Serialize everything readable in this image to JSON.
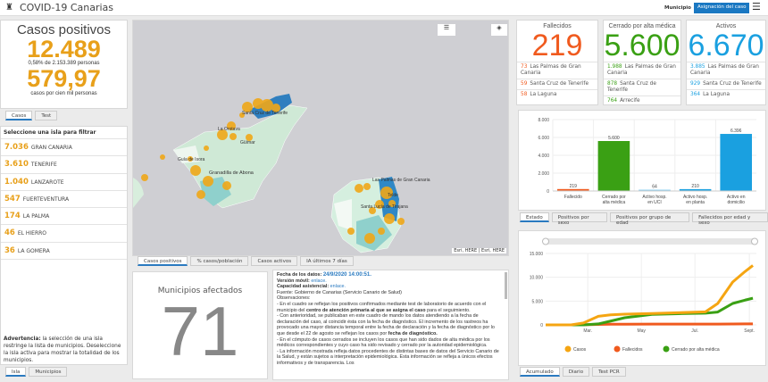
{
  "header": {
    "title": "COVID-19 Canarias",
    "municipio_label": "Municipio",
    "assign_button": "Asignación del caso",
    "menu_icon": "hamburger-icon",
    "logo_icon": "canarias-crest-icon"
  },
  "summary": {
    "title": "Casos positivos",
    "total": "12.489",
    "pct_text": "0,58% de 2.153.389 personas",
    "rate": "579,97",
    "rate_text": "casos por cien mil personas",
    "tabs": [
      "Casos",
      "Test"
    ],
    "color": "#e8a01a"
  },
  "islands": {
    "heading": "Seleccione una isla para filtrar",
    "items": [
      {
        "value": "7.036",
        "name": "GRAN CANARIA"
      },
      {
        "value": "3.610",
        "name": "TENERIFE"
      },
      {
        "value": "1.040",
        "name": "LANZAROTE"
      },
      {
        "value": "547",
        "name": "FUERTEVENTURA"
      },
      {
        "value": "174",
        "name": "LA PALMA"
      },
      {
        "value": "46",
        "name": "EL HIERRO"
      },
      {
        "value": "36",
        "name": "LA GOMERA"
      }
    ],
    "warning_bold": "Advertencia:",
    "warning": " la selección de una isla restringe la lista de municipios. Deseleccione la isla activa para mostrar la totalidad de los municipios.",
    "tabs": [
      "Isla",
      "Municipios"
    ]
  },
  "map": {
    "labels": [
      "Santa Cruz de Tenerife",
      "La Orotava",
      "Güímar",
      "Guía de Isora",
      "Granadilla de Abona",
      "Las Palmas de Gran Canaria",
      "Telde",
      "Santa Lucía de Tirajana"
    ],
    "attribution": "Esri, HERE | Esri, HERE",
    "tabs": [
      "Casos positivos",
      "% casos/población",
      "Casos activos",
      "IA últimos 7 días"
    ],
    "bubble_color": "#f0a818"
  },
  "municipios": {
    "title": "Municipios afectados",
    "value": "71"
  },
  "info": {
    "fecha_label": "Fecha de los datos: ",
    "fecha": "24/9/2020 14:00:51.",
    "movil_label": "Versión móvil: ",
    "movil_link": "enlace.",
    "cap_label": "Capacidad asistencial: ",
    "cap_link": "enlace.",
    "fuente": "Fuente: Gobierno de Canarias (Servicio Canario de Salud)",
    "obs": "Observaciones:",
    "p1a": "- En el cuadro se reflejan los positivos confirmados mediante test de laboratorio de acuerdo con el municipio del ",
    "p1b": "centro de atención primaria al que se asigna el caso",
    "p1c": " para el seguimiento.",
    "p2a": "- Con anterioridad, se publicaban en este cuadro de mando los datos atendiendo a la fecha de declaración del caso, al coincidir ésta con la fecha de diagnóstico. El incremento de los rastreos ha provocado una mayor distancia temporal entre la fecha de declaración y la fecha de diagnóstico por lo que desde el 22 de agosto se reflejan los casos por ",
    "p2b": "fecha de diagnóstico.",
    "p3": "- En el cómputo de casos cerrados se incluyen los casos que han sido dados de alta médica por los médicos correspondientes y cuyo caso ha sido revisado y cerrado por la autoridad epidemiológica.",
    "p4": "- La información mostrada refleja datos procedentes de distintas bases de datos del Servicio Canario de la Salud, y están sujetos a interpretación epidemiológica. Esta información se refleja a únicos efectos informativos y de transparencia. Los"
  },
  "cards": [
    {
      "title": "Fallecidos",
      "value": "219",
      "color": "#f05a1e",
      "rows": [
        {
          "v": "73",
          "n": "Las Palmas de Gran Canaria"
        },
        {
          "v": "59",
          "n": "Santa Cruz de Tenerife"
        },
        {
          "v": "58",
          "n": "La Laguna"
        }
      ]
    },
    {
      "title": "Cerrado por alta médica",
      "value": "5.600",
      "color": "#3aa014",
      "rows": [
        {
          "v": "1.988",
          "n": "Las Palmas de Gran Canaria"
        },
        {
          "v": "878",
          "n": "Santa Cruz de Tenerife"
        },
        {
          "v": "764",
          "n": "Arrecife"
        }
      ]
    },
    {
      "title": "Activos",
      "value": "6.670",
      "color": "#1aa0e0",
      "rows": [
        {
          "v": "3.885",
          "n": "Las Palmas de Gran Canaria"
        },
        {
          "v": "929",
          "n": "Santa Cruz de Tenerife"
        },
        {
          "v": "364",
          "n": "La Laguna"
        }
      ]
    }
  ],
  "chart_data": [
    {
      "type": "bar",
      "categories": [
        "Fallecido",
        "Cerrado por alta médica",
        "Activo hosp. en UCI",
        "Activo hosp. en planta",
        "Activo en domicilio"
      ],
      "values": [
        219,
        5600,
        64,
        210,
        6396
      ],
      "value_labels": [
        "219",
        "5.600",
        "64",
        "210",
        "6.396"
      ],
      "colors": [
        "#f05a1e",
        "#3aa014",
        "#8fd0f0",
        "#1aa0e0",
        "#1aa0e0"
      ],
      "ylim": [
        0,
        8000
      ],
      "yticks": [
        "0",
        "2.000",
        "4.000",
        "6.000",
        "8.000"
      ],
      "grid": true,
      "tabs": [
        "Estado",
        "Positivos por sexo",
        "Positivos por grupo de edad",
        "Fallecidos por edad y sexo"
      ]
    },
    {
      "type": "line",
      "x": [
        "2020-02-01",
        "2020-03-01",
        "2020-03-15",
        "2020-04-01",
        "2020-04-15",
        "2020-05-01",
        "2020-06-01",
        "2020-07-01",
        "2020-08-01",
        "2020-08-15",
        "2020-09-01",
        "2020-09-15",
        "2020-09-24"
      ],
      "series": [
        {
          "name": "Casos",
          "color": "#f5a512",
          "values": [
            0,
            5,
            400,
            1800,
            2100,
            2250,
            2400,
            2550,
            2750,
            4500,
            9000,
            11200,
            12489
          ]
        },
        {
          "name": "Fallecidos",
          "color": "#f05a1e",
          "values": [
            0,
            0,
            20,
            90,
            130,
            145,
            160,
            165,
            165,
            170,
            180,
            200,
            219
          ]
        },
        {
          "name": "Cerrado por alta médica",
          "color": "#3aa014",
          "values": [
            0,
            0,
            0,
            200,
            800,
            1500,
            2200,
            2350,
            2450,
            2700,
            4500,
            5200,
            5600
          ]
        }
      ],
      "xticks": [
        "Mar.",
        "May",
        "Jul.",
        "Sept."
      ],
      "ylim": [
        0,
        15000
      ],
      "yticks": [
        "0",
        "5.000",
        "10.000",
        "15.000"
      ],
      "grid": true,
      "legend": "bottom",
      "tabs": [
        "Acumulado",
        "Diario",
        "Test PCR"
      ]
    }
  ]
}
